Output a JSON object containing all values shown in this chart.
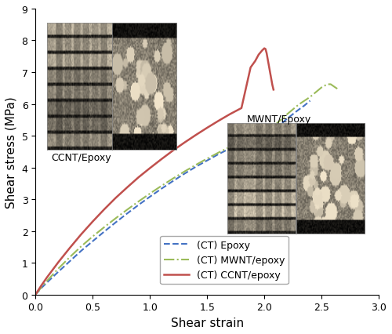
{
  "title": "",
  "xlabel": "Shear strain",
  "ylabel": "Shear stress (MPa)",
  "xlim": [
    0,
    3
  ],
  "ylim": [
    0,
    9
  ],
  "xticks": [
    0,
    0.5,
    1.0,
    1.5,
    2.0,
    2.5,
    3.0
  ],
  "yticks": [
    0,
    1,
    2,
    3,
    4,
    5,
    6,
    7,
    8,
    9
  ],
  "background_color": "#ffffff",
  "series": {
    "epoxy": {
      "color": "#4472C4",
      "linestyle": "--",
      "linewidth": 1.5,
      "label": "(CT) Epoxy",
      "x": [
        0,
        0.05,
        0.1,
        0.2,
        0.3,
        0.4,
        0.5,
        0.6,
        0.7,
        0.8,
        0.9,
        1.0,
        1.1,
        1.2,
        1.3,
        1.4,
        1.5,
        1.6,
        1.7,
        1.8,
        1.9,
        2.0,
        2.1,
        2.2,
        2.3,
        2.35,
        2.4
      ],
      "y": [
        0,
        0.2,
        0.38,
        0.72,
        1.05,
        1.38,
        1.68,
        1.98,
        2.27,
        2.55,
        2.82,
        3.08,
        3.33,
        3.57,
        3.8,
        4.02,
        4.22,
        4.42,
        4.6,
        4.77,
        4.93,
        5.08,
        5.22,
        5.54,
        5.82,
        5.95,
        6.1
      ]
    },
    "mwnt": {
      "color": "#9BBB59",
      "linestyle": "-.",
      "linewidth": 1.5,
      "label": "(CT) MWNT/epoxy",
      "x": [
        0,
        0.05,
        0.1,
        0.2,
        0.3,
        0.4,
        0.5,
        0.6,
        0.7,
        0.8,
        0.9,
        1.0,
        1.1,
        1.2,
        1.3,
        1.4,
        1.5,
        1.6,
        1.7,
        1.8,
        1.9,
        2.0,
        2.1,
        2.2,
        2.3,
        2.4,
        2.5,
        2.55,
        2.58,
        2.62,
        2.65
      ],
      "y": [
        0,
        0.22,
        0.43,
        0.82,
        1.18,
        1.52,
        1.83,
        2.12,
        2.4,
        2.67,
        2.93,
        3.18,
        3.42,
        3.65,
        3.87,
        4.08,
        4.28,
        4.47,
        4.65,
        4.82,
        4.98,
        5.13,
        5.36,
        5.68,
        5.98,
        6.22,
        6.52,
        6.62,
        6.62,
        6.52,
        6.45
      ]
    },
    "ccnt": {
      "color": "#C0504D",
      "linestyle": "-",
      "linewidth": 1.8,
      "label": "(CT) CCNT/epoxy",
      "x": [
        0,
        0.05,
        0.1,
        0.2,
        0.3,
        0.4,
        0.5,
        0.6,
        0.7,
        0.8,
        0.9,
        1.0,
        1.1,
        1.2,
        1.3,
        1.4,
        1.5,
        1.6,
        1.7,
        1.8,
        1.88,
        1.92,
        1.95,
        1.98,
        2.0,
        2.01,
        2.02,
        2.03,
        2.05,
        2.06,
        2.07,
        2.08
      ],
      "y": [
        0,
        0.28,
        0.54,
        1.02,
        1.47,
        1.9,
        2.3,
        2.68,
        3.04,
        3.37,
        3.69,
        3.98,
        4.26,
        4.53,
        4.78,
        5.02,
        5.25,
        5.47,
        5.68,
        5.87,
        7.15,
        7.35,
        7.55,
        7.68,
        7.75,
        7.73,
        7.6,
        7.4,
        7.0,
        6.8,
        6.6,
        6.45
      ]
    }
  },
  "legend_fontsize": 9,
  "label_fontsize": 11,
  "tick_fontsize": 9,
  "ccnt_label": "CCNT/Epoxy",
  "mwnt_label": "MWNT/Epoxy"
}
